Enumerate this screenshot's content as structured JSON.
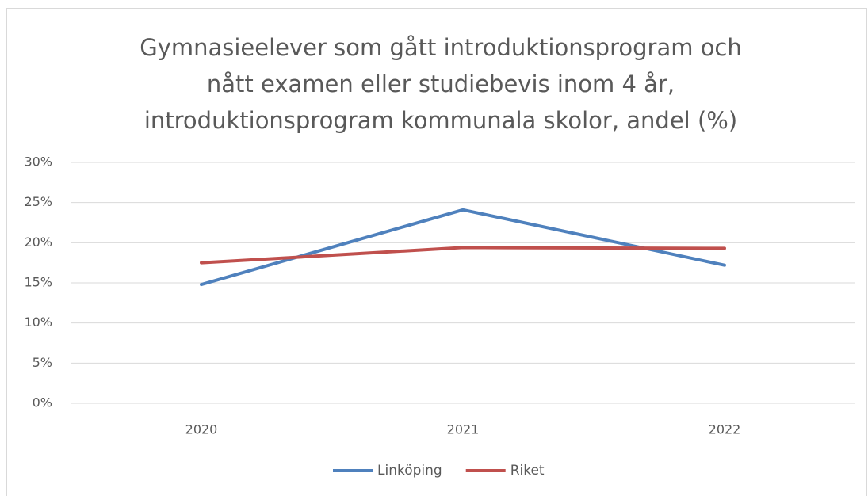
{
  "chart_data": {
    "type": "line",
    "title": [
      "Gymnasieelever som gått introduktionsprogram och",
      "nått examen eller studiebevis inom 4 år,",
      "introduktionsprogram kommunala skolor, andel (%)"
    ],
    "categories": [
      "2020",
      "2021",
      "2022"
    ],
    "series": [
      {
        "name": "Linköping",
        "color": "#4f81bd",
        "values": [
          14.8,
          24.1,
          17.2
        ]
      },
      {
        "name": "Riket",
        "color": "#c0504d",
        "values": [
          17.5,
          19.4,
          19.3
        ]
      }
    ],
    "ylim": [
      0,
      30
    ],
    "yticks": [
      {
        "value": 0,
        "label": "0%"
      },
      {
        "value": 5,
        "label": "5%"
      },
      {
        "value": 10,
        "label": "10%"
      },
      {
        "value": 15,
        "label": "15%"
      },
      {
        "value": 20,
        "label": "20%"
      },
      {
        "value": 25,
        "label": "25%"
      },
      {
        "value": 30,
        "label": "30%"
      }
    ],
    "grid": true,
    "legend": "bottom"
  }
}
